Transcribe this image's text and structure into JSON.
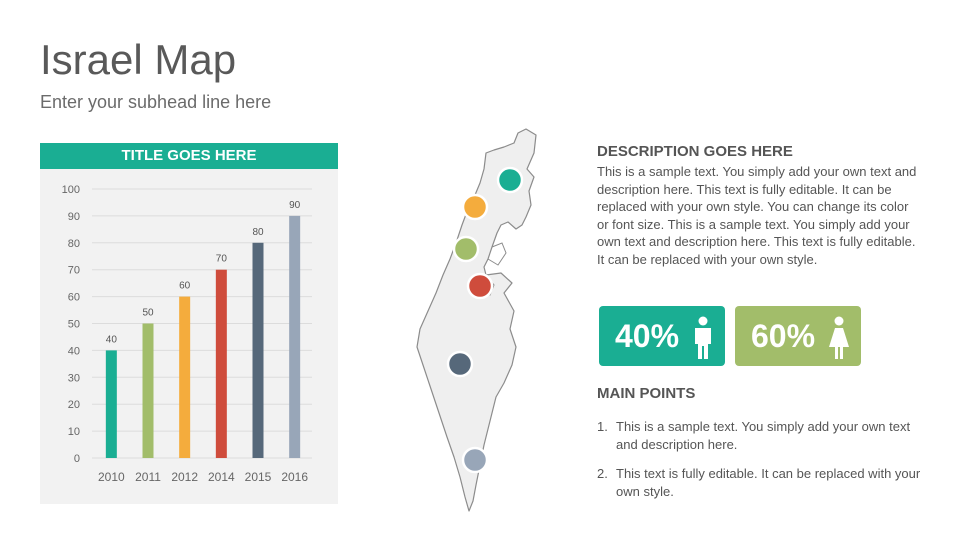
{
  "slide": {
    "title": "Israel Map",
    "subtitle": "Enter your subhead line here"
  },
  "chart_card": {
    "header": "TITLE GOES HERE"
  },
  "chart_data": {
    "type": "bar",
    "title": "TITLE GOES HERE",
    "categories": [
      "2010",
      "2011",
      "2012",
      "2014",
      "2015",
      "2016"
    ],
    "values": [
      40,
      50,
      60,
      70,
      80,
      90
    ],
    "colors": [
      "#1aae93",
      "#a2bd6a",
      "#f4ac3d",
      "#cf4c3c",
      "#56687a",
      "#98a6b8"
    ],
    "ylim": [
      0,
      100
    ],
    "yticks": [
      0,
      10,
      20,
      30,
      40,
      50,
      60,
      70,
      80,
      90,
      100
    ],
    "grid": true,
    "data_labels": true,
    "xlabel": "",
    "ylabel": ""
  },
  "map": {
    "region": "Israel",
    "markers": [
      {
        "name": "teal-marker",
        "color": "#1aae93"
      },
      {
        "name": "orange-marker",
        "color": "#f4ac3d"
      },
      {
        "name": "green-marker",
        "color": "#a2bd6a"
      },
      {
        "name": "red-marker",
        "color": "#cf4c3c"
      },
      {
        "name": "navy-marker",
        "color": "#56687a"
      },
      {
        "name": "gray-marker",
        "color": "#98a6b8"
      }
    ]
  },
  "description": {
    "title": "DESCRIPTION GOES HERE",
    "body": "This is a sample text. You simply add your own text and description here. This text is fully editable. It can be replaced with your own style. You can change its color or font size. This is a sample text. You simply add your own text and description here. This text is fully editable. It can be replaced with your own style."
  },
  "stats": {
    "male": {
      "value": "40%",
      "icon": "male-icon",
      "color": "#1aae93"
    },
    "female": {
      "value": "60%",
      "icon": "female-icon",
      "color": "#a2bd6a"
    }
  },
  "main_points": {
    "title": "MAIN POINTS",
    "items": [
      {
        "num": "1.",
        "text": "This is a sample text. You simply add your own text and description here."
      },
      {
        "num": "2.",
        "text": "This text is fully editable. It can be replaced with your own style."
      }
    ]
  }
}
